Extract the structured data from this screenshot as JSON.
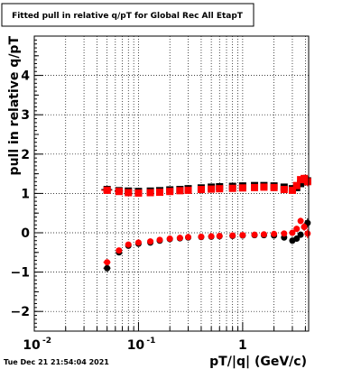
{
  "page": {
    "title": "Fitted pull in relative q/pT for Global Rec All EtapT",
    "timestamp": "Tue Dec 21 21:54:04 2021"
  },
  "chart_data": {
    "type": "scatter",
    "title": "Fitted pull in relative q/pT for Global Rec All EtapT",
    "xlabel": "pT/|q| (GeV/c)",
    "ylabel": "pull in relative q/pT",
    "x_scale": "log",
    "xlim": [
      0.01,
      4.3
    ],
    "ylim": [
      -2.5,
      5.0
    ],
    "x_ticks": [
      {
        "value": 0.01,
        "label": "10",
        "exp": "-2"
      },
      {
        "value": 0.1,
        "label": "10",
        "exp": "-1"
      },
      {
        "value": 1,
        "label": "1",
        "exp": ""
      }
    ],
    "y_ticks": [
      {
        "value": -2,
        "label": "−2"
      },
      {
        "value": -1,
        "label": "−1"
      },
      {
        "value": 0,
        "label": "0"
      },
      {
        "value": 1,
        "label": "1"
      },
      {
        "value": 2,
        "label": "2"
      },
      {
        "value": 3,
        "label": "3"
      },
      {
        "value": 4,
        "label": "4"
      }
    ],
    "grid": true,
    "colors": {
      "red": "#ff0000",
      "black": "#000000"
    },
    "series": [
      {
        "color": "black",
        "marker": "square",
        "x": [
          0.05,
          0.065,
          0.08,
          0.1,
          0.13,
          0.16,
          0.2,
          0.25,
          0.3,
          0.4,
          0.5,
          0.6,
          0.8,
          1.0,
          1.3,
          1.6,
          2.0,
          2.5,
          3.0,
          3.3,
          3.6,
          3.9,
          4.2
        ],
        "y": [
          1.1,
          1.07,
          1.06,
          1.05,
          1.06,
          1.07,
          1.09,
          1.1,
          1.12,
          1.14,
          1.16,
          1.17,
          1.18,
          1.19,
          1.2,
          1.2,
          1.19,
          1.16,
          1.12,
          1.15,
          1.25,
          1.3,
          1.32
        ],
        "xerr": [
          0.006,
          0.006,
          0.006,
          0.006,
          0.0,
          0.0,
          0.0,
          0.0,
          0.0,
          0.0,
          0.0,
          0.0,
          0.0,
          0.0,
          0.0,
          0.0,
          0.0,
          0.0,
          0.0,
          0.0,
          0.0,
          0.0,
          0.0
        ],
        "yerr": [
          0.02,
          0.02,
          0.02,
          0.02,
          0.01,
          0.01,
          0.01,
          0.01,
          0.01,
          0.01,
          0.01,
          0.01,
          0.01,
          0.01,
          0.01,
          0.02,
          0.02,
          0.03,
          0.05,
          0.06,
          0.08,
          0.1,
          0.12
        ]
      },
      {
        "color": "red",
        "marker": "square",
        "x": [
          0.05,
          0.065,
          0.08,
          0.1,
          0.13,
          0.16,
          0.2,
          0.25,
          0.3,
          0.4,
          0.5,
          0.6,
          0.8,
          1.0,
          1.3,
          1.6,
          2.0,
          2.5,
          3.0,
          3.3,
          3.6,
          3.9,
          4.2
        ],
        "y": [
          1.08,
          1.05,
          1.02,
          1.01,
          1.02,
          1.03,
          1.05,
          1.07,
          1.08,
          1.1,
          1.11,
          1.12,
          1.13,
          1.14,
          1.15,
          1.16,
          1.15,
          1.1,
          1.08,
          1.2,
          1.35,
          1.38,
          1.3
        ],
        "xerr": [
          0.006,
          0.006,
          0.006,
          0.006,
          0.0,
          0.0,
          0.0,
          0.0,
          0.0,
          0.0,
          0.0,
          0.0,
          0.0,
          0.0,
          0.0,
          0.0,
          0.0,
          0.0,
          0.0,
          0.0,
          0.0,
          0.0,
          0.0
        ],
        "yerr": [
          0.02,
          0.02,
          0.02,
          0.02,
          0.01,
          0.01,
          0.01,
          0.01,
          0.01,
          0.01,
          0.01,
          0.01,
          0.01,
          0.01,
          0.01,
          0.02,
          0.02,
          0.03,
          0.05,
          0.06,
          0.08,
          0.1,
          0.12
        ]
      },
      {
        "color": "black",
        "marker": "circle",
        "x": [
          0.05,
          0.065,
          0.08,
          0.1,
          0.13,
          0.16,
          0.2,
          0.25,
          0.3,
          0.4,
          0.5,
          0.6,
          0.8,
          1.0,
          1.3,
          1.6,
          2.0,
          2.5,
          3.0,
          3.3,
          3.6,
          3.9,
          4.2
        ],
        "y": [
          -0.9,
          -0.5,
          -0.33,
          -0.28,
          -0.25,
          -0.2,
          -0.16,
          -0.14,
          -0.12,
          -0.11,
          -0.1,
          -0.09,
          -0.08,
          -0.07,
          -0.06,
          -0.06,
          -0.07,
          -0.12,
          -0.2,
          -0.15,
          -0.05,
          0.15,
          0.25
        ],
        "xerr": [
          0.004,
          0.004,
          0.004,
          0.004,
          0.0,
          0.0,
          0.0,
          0.0,
          0.0,
          0.0,
          0.0,
          0.0,
          0.0,
          0.0,
          0.0,
          0.0,
          0.0,
          0.0,
          0.0,
          0.0,
          0.0,
          0.0,
          0.0
        ],
        "yerr": [
          0.05,
          0.04,
          0.03,
          0.02,
          0.01,
          0.01,
          0.01,
          0.01,
          0.01,
          0.01,
          0.01,
          0.01,
          0.01,
          0.01,
          0.01,
          0.02,
          0.02,
          0.03,
          0.05,
          0.06,
          0.08,
          0.1,
          0.12
        ]
      },
      {
        "color": "red",
        "marker": "circle",
        "x": [
          0.05,
          0.065,
          0.08,
          0.1,
          0.13,
          0.16,
          0.2,
          0.25,
          0.3,
          0.4,
          0.5,
          0.6,
          0.8,
          1.0,
          1.3,
          1.6,
          2.0,
          2.5,
          3.0,
          3.3,
          3.6,
          3.9,
          4.2
        ],
        "y": [
          -0.75,
          -0.45,
          -0.3,
          -0.25,
          -0.22,
          -0.18,
          -0.15,
          -0.13,
          -0.11,
          -0.1,
          -0.09,
          -0.08,
          -0.07,
          -0.06,
          -0.05,
          -0.04,
          -0.03,
          -0.02,
          0.0,
          0.1,
          0.3,
          0.15,
          -0.02
        ],
        "xerr": [
          0.004,
          0.004,
          0.004,
          0.004,
          0.0,
          0.0,
          0.0,
          0.0,
          0.0,
          0.0,
          0.0,
          0.0,
          0.0,
          0.0,
          0.0,
          0.0,
          0.0,
          0.0,
          0.0,
          0.0,
          0.0,
          0.0,
          0.0
        ],
        "yerr": [
          0.05,
          0.04,
          0.03,
          0.02,
          0.01,
          0.01,
          0.01,
          0.01,
          0.01,
          0.01,
          0.01,
          0.01,
          0.01,
          0.01,
          0.01,
          0.02,
          0.02,
          0.03,
          0.05,
          0.06,
          0.08,
          0.1,
          0.12
        ]
      }
    ]
  }
}
